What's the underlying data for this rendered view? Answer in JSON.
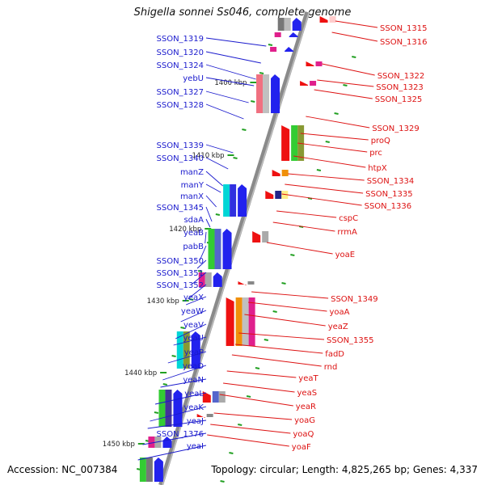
{
  "title": "Shigella sonnei Ss046, complete genome",
  "accession": "Accession: NC_007384",
  "topology": "Topology: circular; Length: 4,825,265 bp; Genes: 4,337",
  "colors": {
    "left_labels": "#1a1acd",
    "right_labels": "#dd1111",
    "backbone": "#8a8a8a",
    "tick": "#22a022",
    "scale_text": "#222222"
  },
  "scale_ticks": [
    "1400 kbp",
    "1410 kbp",
    "1420 kbp",
    "1430 kbp",
    "1440 kbp",
    "1450 kbp"
  ],
  "left_genes": [
    "SSON_1319",
    "SSON_1320",
    "SSON_1324",
    "yebU",
    "SSON_1327",
    "SSON_1328",
    "SSON_1339",
    "SSON_1340",
    "manZ",
    "manY",
    "manX",
    "SSON_1345",
    "sdaA",
    "yeaB",
    "pabB",
    "SSON_1350",
    "SSON_1351",
    "SSON_1352",
    "yeaX",
    "yeaW",
    "yeaV",
    "yeaU",
    "yeaP",
    "yeaO",
    "yeaN",
    "yeaL",
    "yeaK",
    "yeaJ",
    "SSON_1376",
    "yeaI"
  ],
  "right_genes": [
    "SSON_1315",
    "SSON_1316",
    "SSON_1322",
    "SSON_1323",
    "SSON_1325",
    "SSON_1329",
    "proQ",
    "prc",
    "htpX",
    "SSON_1334",
    "SSON_1335",
    "SSON_1336",
    "cspC",
    "rrmA",
    "yoaE",
    "SSON_1349",
    "yoaA",
    "yeaZ",
    "SSON_1355",
    "fadD",
    "rnd",
    "yeaT",
    "yeaS",
    "yeaR",
    "yoaG",
    "yoaQ",
    "yoaF"
  ]
}
